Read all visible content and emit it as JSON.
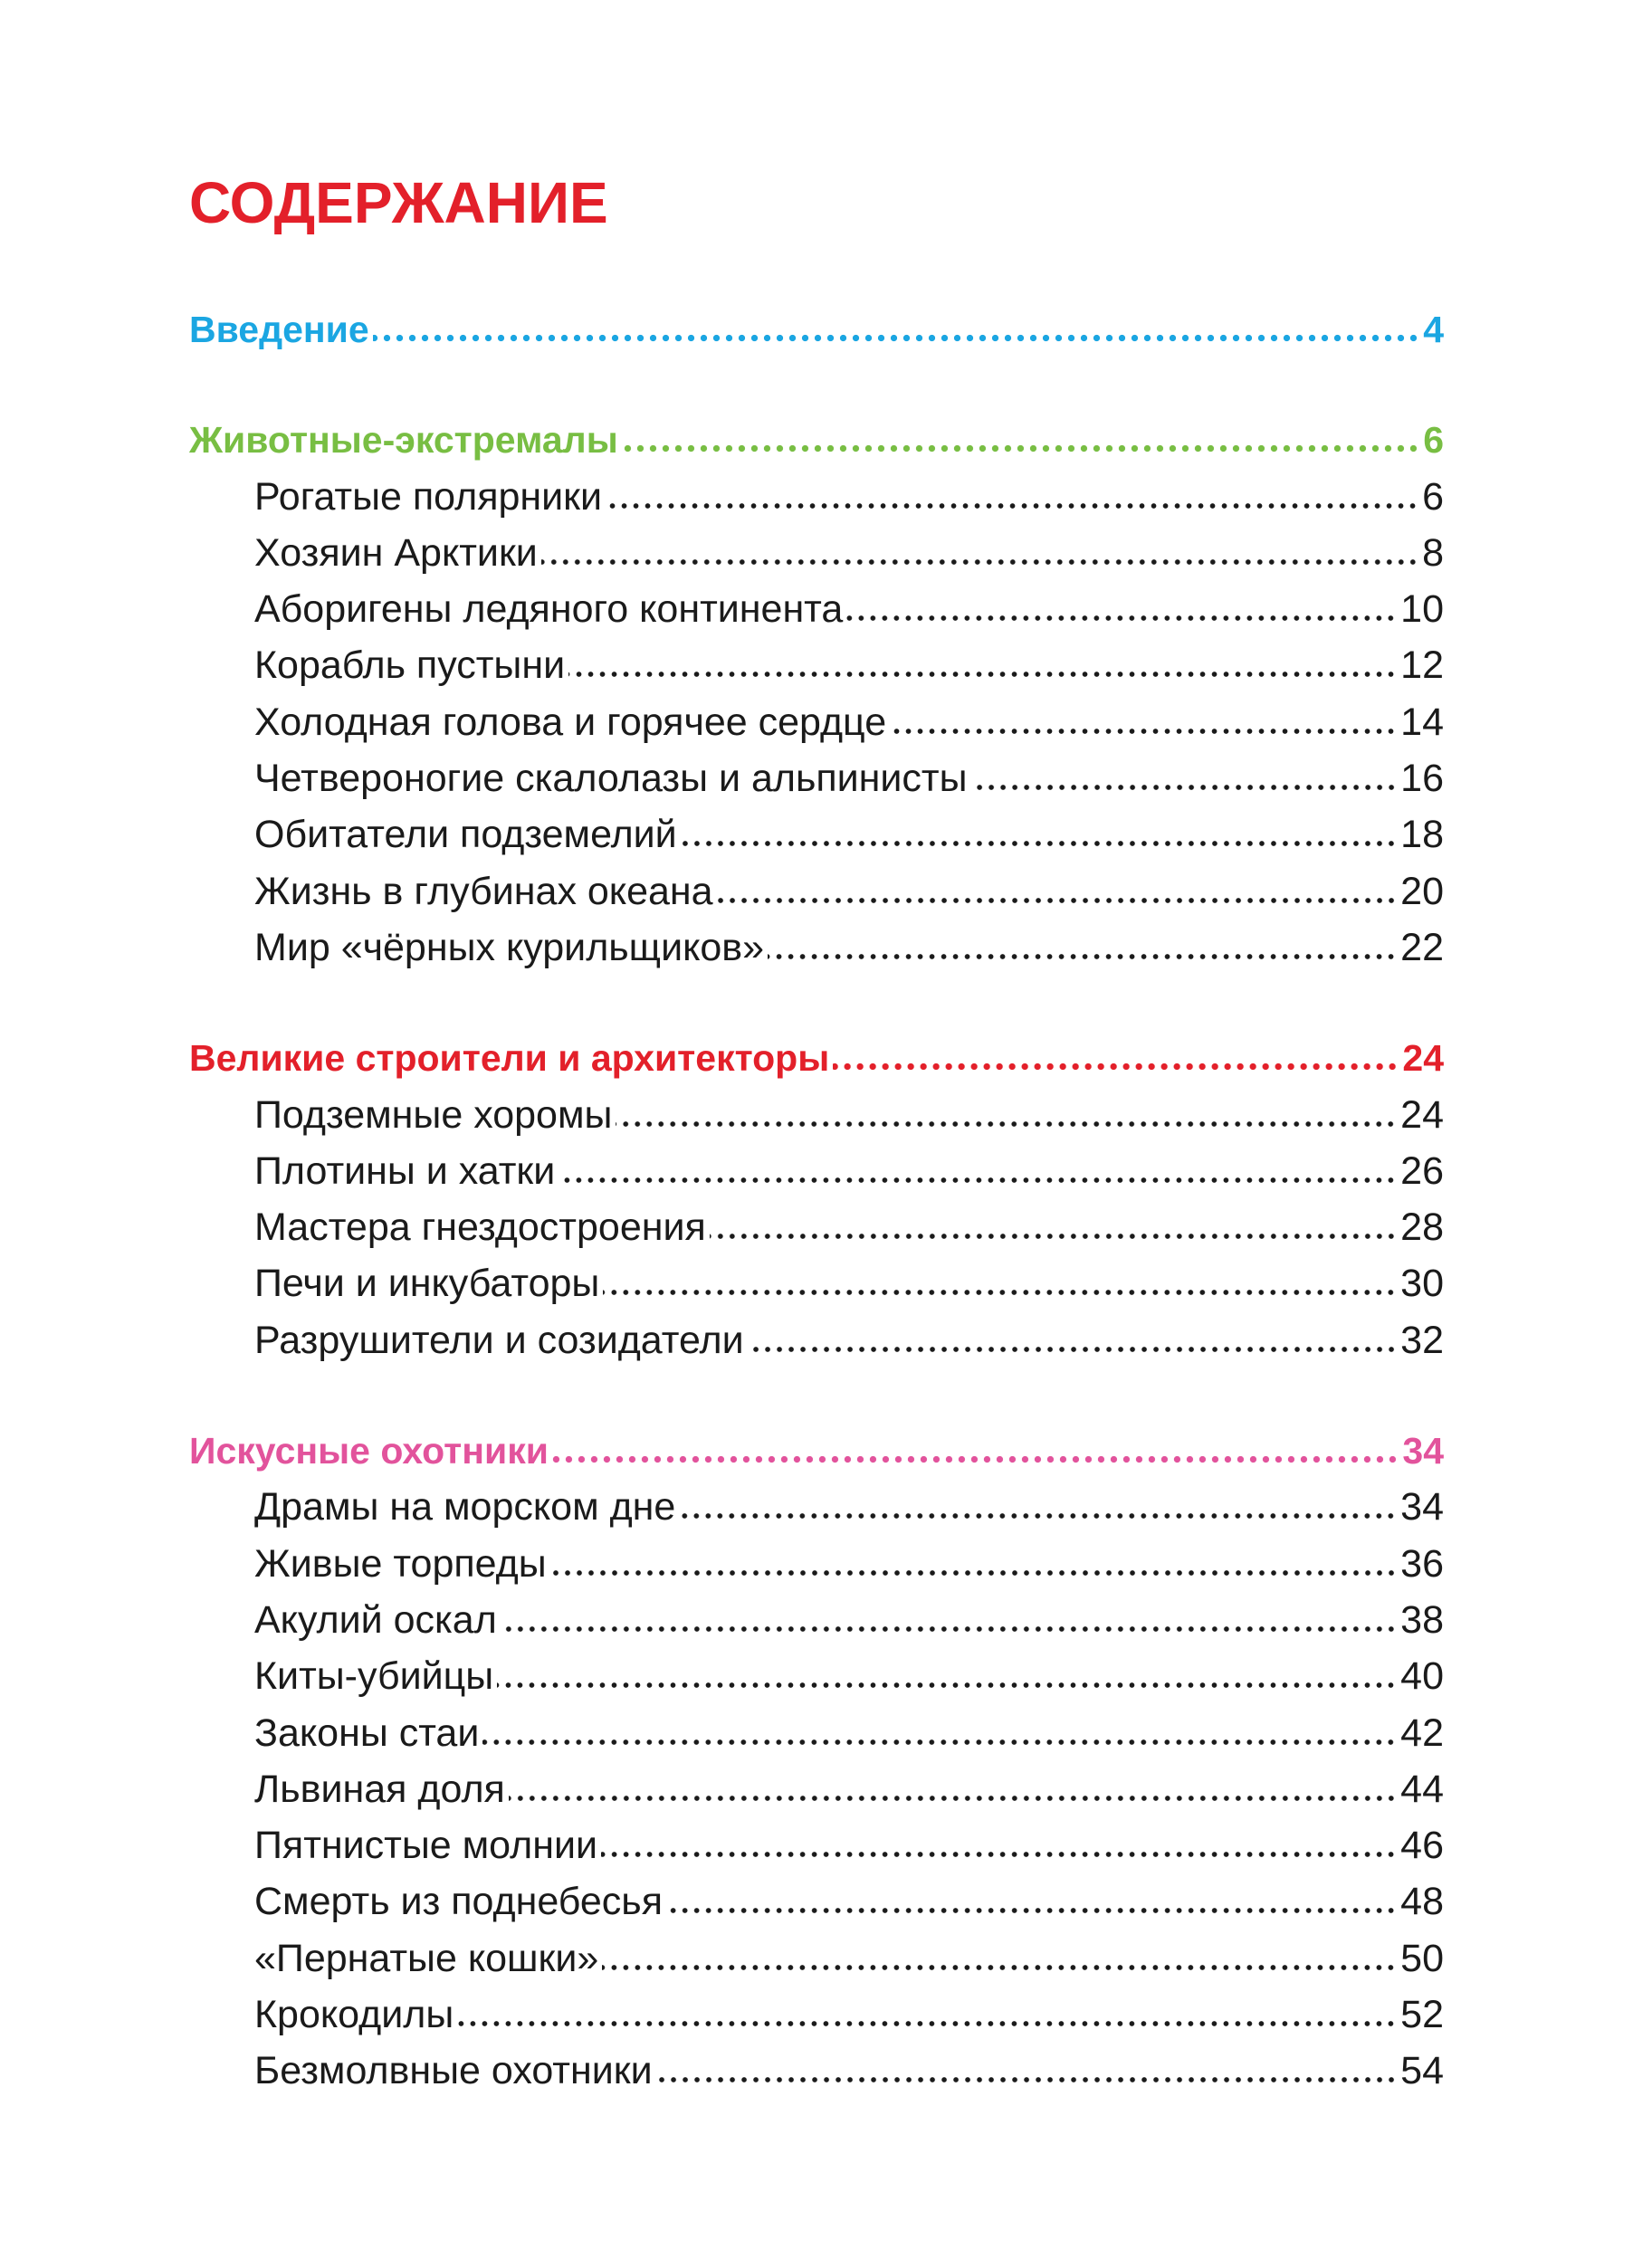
{
  "title": "СОДЕРЖАНИЕ",
  "sections": [
    {
      "title": "Введение",
      "page": 4,
      "color": "#1ba6e2",
      "items": []
    },
    {
      "title": "Животные-экстремалы",
      "page": 6,
      "color": "#78be43",
      "items": [
        {
          "title": "Рогатые полярники",
          "page": 6
        },
        {
          "title": "Хозяин Арктики",
          "page": 8
        },
        {
          "title": "Аборигены ледяного континента",
          "page": 10
        },
        {
          "title": "Корабль пустыни",
          "page": 12
        },
        {
          "title": "Холодная голова и горячее сердце",
          "page": 14
        },
        {
          "title": "Четвероногие скалолазы и альпинисты",
          "page": 16
        },
        {
          "title": "Обитатели подземелий",
          "page": 18
        },
        {
          "title": "Жизнь в глубинах океана",
          "page": 20
        },
        {
          "title": "Мир «чёрных курильщиков»",
          "page": 22
        }
      ]
    },
    {
      "title": "Великие строители и архитекторы",
      "page": 24,
      "color": "#e3202a",
      "items": [
        {
          "title": "Подземные хоромы",
          "page": 24
        },
        {
          "title": "Плотины и хатки",
          "page": 26
        },
        {
          "title": "Мастера гнездостроения",
          "page": 28
        },
        {
          "title": "Печи и инкубаторы",
          "page": 30
        },
        {
          "title": "Разрушители и созидатели",
          "page": 32
        }
      ]
    },
    {
      "title": "Искусные охотники",
      "page": 34,
      "color": "#e2539c",
      "items": [
        {
          "title": "Драмы на морском дне",
          "page": 34
        },
        {
          "title": "Живые торпеды",
          "page": 36
        },
        {
          "title": "Акулий оскал",
          "page": 38
        },
        {
          "title": "Киты-убийцы",
          "page": 40
        },
        {
          "title": "Законы стаи",
          "page": 42
        },
        {
          "title": "Львиная доля",
          "page": 44
        },
        {
          "title": "Пятнистые молнии",
          "page": 46
        },
        {
          "title": "Смерть из поднебесья",
          "page": 48
        },
        {
          "title": "«Пернатые кошки»",
          "page": 50
        },
        {
          "title": "Крокодилы",
          "page": 52
        },
        {
          "title": "Безмолвные охотники",
          "page": 54
        }
      ]
    }
  ]
}
